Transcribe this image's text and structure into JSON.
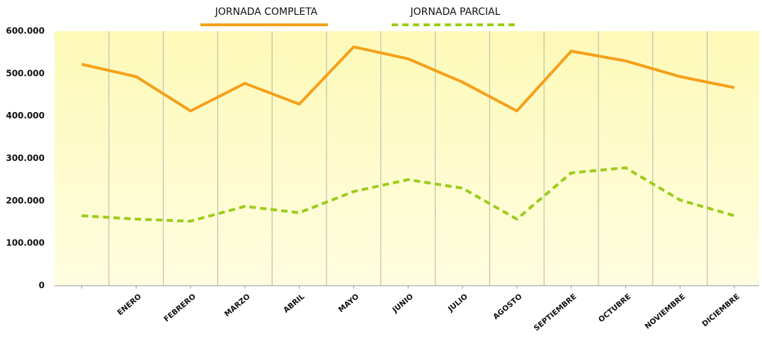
{
  "chart_data": {
    "type": "line",
    "categories": [
      null,
      "ENERO",
      "FEBRERO",
      "MARZO",
      "ABRIL",
      "MAYO",
      "JUNIO",
      "JULIO",
      "AGOSTO",
      "SEPTIEMBRE",
      "OCTUBRE",
      "NOVIEMBRE",
      "DICIEMBRE"
    ],
    "series": [
      {
        "name": "JORNADA COMPLETA",
        "color": "#f5a01a",
        "dash": false,
        "values": [
          522000,
          493000,
          412000,
          477000,
          428000,
          563000,
          535000,
          480000,
          412000,
          553000,
          530000,
          493000,
          467000
        ]
      },
      {
        "name": "JORNADA PARCIAL",
        "color": "#9ccc1a",
        "dash": true,
        "values": [
          165000,
          157000,
          152000,
          187000,
          172000,
          222000,
          250000,
          230000,
          157000,
          266000,
          278000,
          202000,
          165000
        ]
      }
    ],
    "ylim": [
      0,
      600000
    ],
    "yticks": [
      0,
      {
        "value": 100000,
        "label": "100.000"
      },
      {
        "value": 200000,
        "label": "200.000"
      },
      {
        "value": 300000,
        "label": "300.000"
      },
      {
        "value": 400000,
        "label": "400.000"
      },
      {
        "value": 500000,
        "label": "500.000"
      },
      {
        "value": 600000,
        "label": "600.000"
      }
    ],
    "grid": false,
    "legend": "top"
  }
}
